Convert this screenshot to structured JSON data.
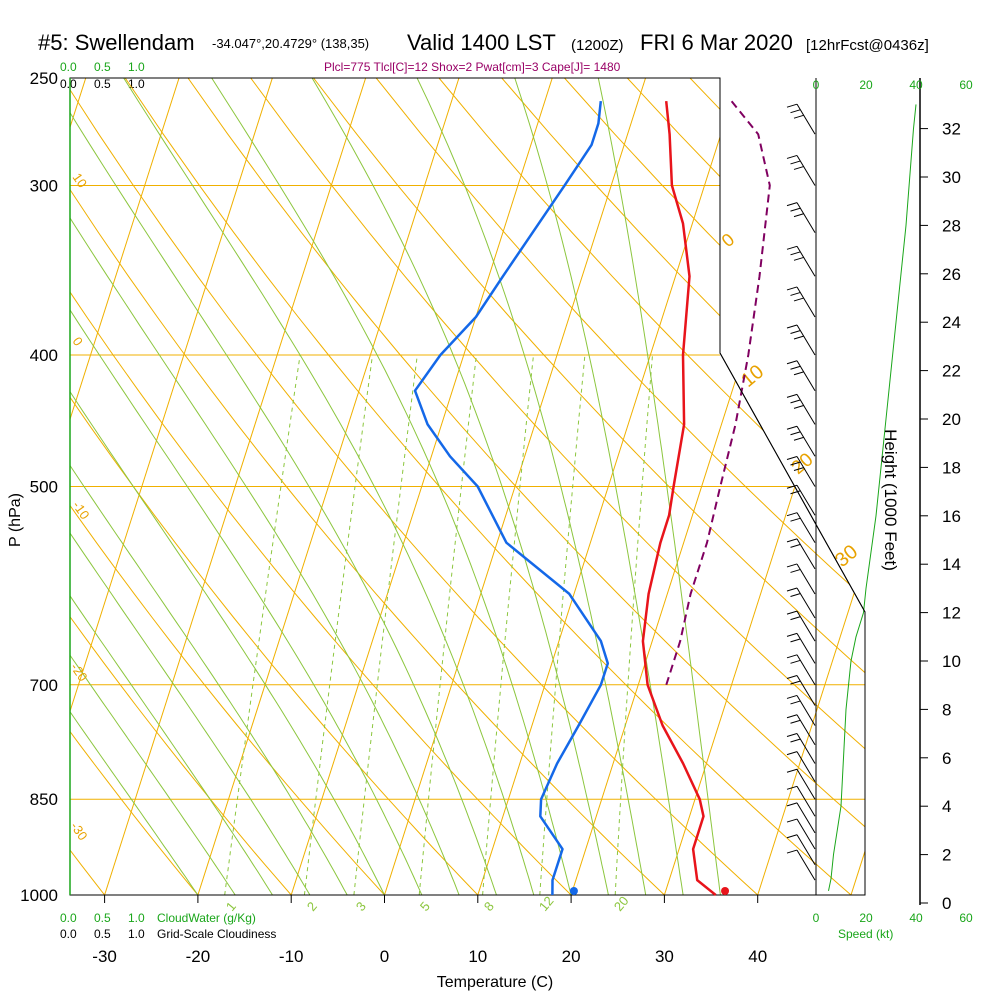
{
  "header": {
    "title": "#5: Swellendam",
    "coords": "-34.047°,20.4729° (138,35)",
    "valid": "Valid 1400 LST",
    "zulu": "(1200Z)",
    "date": "FRI 6 Mar 2020",
    "forecast": "[12hrFcst@0436z]",
    "params": "Plcl=775 Tlcl[C]=12 Shox=2 Pwat[cm]=3 Cape[J]= 1480"
  },
  "bottom_labels": {
    "cloudwater_scale": [
      "0.0",
      "0.5",
      "1.0"
    ],
    "cloudwater": "CloudWater (g/Kg)",
    "cloudiness_scale": [
      "0.0",
      "0.5",
      "1.0"
    ],
    "cloudiness": "Grid-Scale Cloudiness",
    "speed": "Speed (kt)"
  },
  "top_scales": {
    "cloudwater": [
      "0.0",
      "0.5",
      "1.0"
    ],
    "cloudiness": [
      "0.0",
      "0.5",
      "1.0"
    ]
  },
  "chart_data": {
    "type": "line",
    "xlabel": "Temperature (C)",
    "ylabel": "P (hPa)",
    "y2label": "Height (1000 Feet)",
    "xlim": [
      -35,
      35
    ],
    "ylim": [
      1000,
      250
    ],
    "x_ticks": [
      -30,
      -20,
      -10,
      0,
      10,
      20,
      30,
      40
    ],
    "p_ticks": [
      250,
      300,
      400,
      500,
      700,
      850,
      1000
    ],
    "height_ticks": [
      0,
      2,
      4,
      6,
      8,
      10,
      12,
      14,
      16,
      18,
      20,
      22,
      24,
      26,
      28,
      30,
      32
    ],
    "speed_ticks": [
      0,
      20,
      40,
      60
    ],
    "mixing_ratio_labels": [
      "1",
      "2",
      "3",
      "5",
      "8",
      "12",
      "20"
    ],
    "dry_adiabat_labels": [
      "10",
      "0",
      "-10",
      "-20",
      "-30"
    ],
    "moist_adiabat_labels": [
      "0",
      "10",
      "20",
      "30"
    ],
    "series": [
      {
        "name": "Temperature",
        "color": "#e8141b",
        "x": [
          35.5,
          33.0,
          31.5,
          31.5,
          30.5,
          27.5,
          24.0,
          21.0,
          19.0,
          18.0,
          17.5,
          17.5,
          17.0,
          16.0,
          13.5,
          11.5,
          9.0,
          6.5,
          4.5,
          3.0
        ],
        "y": [
          1000,
          975,
          925,
          875,
          850,
          800,
          750,
          700,
          650,
          600,
          550,
          525,
          500,
          450,
          400,
          350,
          320,
          300,
          275,
          260
        ]
      },
      {
        "name": "Dewpoint",
        "color": "#1468e8",
        "x": [
          18.0,
          17.5,
          17.5,
          14.0,
          13.5,
          14.0,
          15.0,
          16.0,
          16.0,
          14.5,
          9.5,
          1.0,
          -4.0,
          -8.0,
          -11.5,
          -14.0,
          -12.5,
          -10.0,
          -8.5,
          -5.0,
          -3.5,
          -3.5,
          -4.0
        ],
        "y": [
          1000,
          975,
          925,
          875,
          850,
          800,
          750,
          700,
          675,
          650,
          600,
          550,
          500,
          475,
          450,
          425,
          400,
          375,
          350,
          300,
          280,
          270,
          260
        ]
      },
      {
        "name": "Parcel",
        "color": "#800060",
        "x": [
          23.0,
          23.0,
          22.5,
          22.5,
          22.0,
          21.5,
          20.5,
          19.0,
          17.0,
          14.0,
          10.0
        ],
        "y": [
          700,
          650,
          600,
          550,
          500,
          450,
          400,
          350,
          300,
          275,
          260
        ]
      }
    ],
    "surface_temperature_marker": 36.5,
    "surface_dewpoint_marker": 20.3,
    "wind_speed_profile": {
      "height_kft": [
        0.5,
        1,
        2,
        4,
        6,
        8,
        10,
        11,
        12,
        13,
        16,
        20,
        24,
        28,
        32,
        33
      ],
      "speed_kt": [
        5,
        6,
        7,
        10,
        11,
        12,
        14,
        16,
        19,
        20,
        24,
        28,
        32,
        36,
        39,
        40
      ]
    }
  }
}
